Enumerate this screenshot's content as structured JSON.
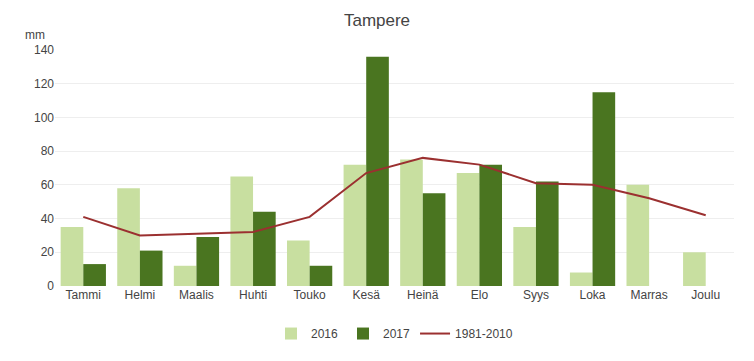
{
  "chart_data": {
    "type": "bar",
    "title": "Tampere",
    "annotations": [
      "mm"
    ],
    "categories": [
      "Tammi",
      "Helmi",
      "Maalis",
      "Huhti",
      "Touko",
      "Kesä",
      "Heinä",
      "Elo",
      "Syys",
      "Loka",
      "Marras",
      "Joulu"
    ],
    "series": [
      {
        "name": "2016",
        "type": "bar",
        "color": "#c8dfa0",
        "values": [
          35,
          58,
          12,
          65,
          27,
          72,
          75,
          67,
          35,
          8,
          60,
          20
        ]
      },
      {
        "name": "2017",
        "type": "bar",
        "color": "#4a7520",
        "values": [
          13,
          21,
          29,
          44,
          12,
          136,
          55,
          72,
          62,
          115,
          0,
          0
        ]
      },
      {
        "name": "1981-2010",
        "type": "line",
        "color": "#9b3030",
        "values": [
          41,
          30,
          31,
          32,
          41,
          67,
          76,
          72,
          61,
          60,
          52,
          42
        ]
      }
    ],
    "ylim": [
      0,
      140
    ],
    "yticks": [
      0,
      20,
      40,
      60,
      80,
      100,
      120,
      140
    ],
    "grid": true,
    "legend": "bottom"
  }
}
